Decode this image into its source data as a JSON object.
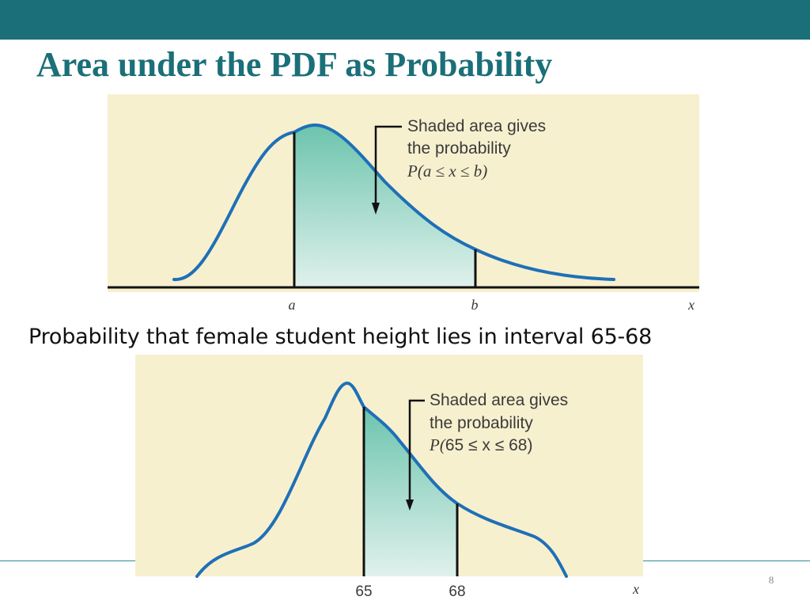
{
  "slide": {
    "title": "Area under the PDF as Probability",
    "subtitle": "Probability that female student height lies in interval 65-68",
    "page_number": "8"
  },
  "colors": {
    "header_bar": "#1b6f78",
    "title": "#1b6f78",
    "footer_line": "#2a8a92",
    "panel_bg": "#f7f0cf",
    "curve": "#1e70b7",
    "shade_top": "#6cc4ad",
    "shade_bottom": "#e0f1ec"
  },
  "diagrams": [
    {
      "annotation": {
        "line1": "Shaded area gives",
        "line2": "the probability",
        "prob_prefix": "P(",
        "prob_body": "a ≤ x ≤ b",
        "prob_suffix": ")"
      },
      "axis": {
        "label_left": "a",
        "label_right": "b",
        "variable": "x"
      }
    },
    {
      "annotation": {
        "line1": "Shaded area gives",
        "line2": "the probability",
        "prob_prefix": "P(",
        "prob_body": "65 ≤ x ≤ 68",
        "prob_suffix": ")"
      },
      "axis": {
        "label_left": "65",
        "label_right": "68",
        "variable": "x"
      }
    }
  ]
}
